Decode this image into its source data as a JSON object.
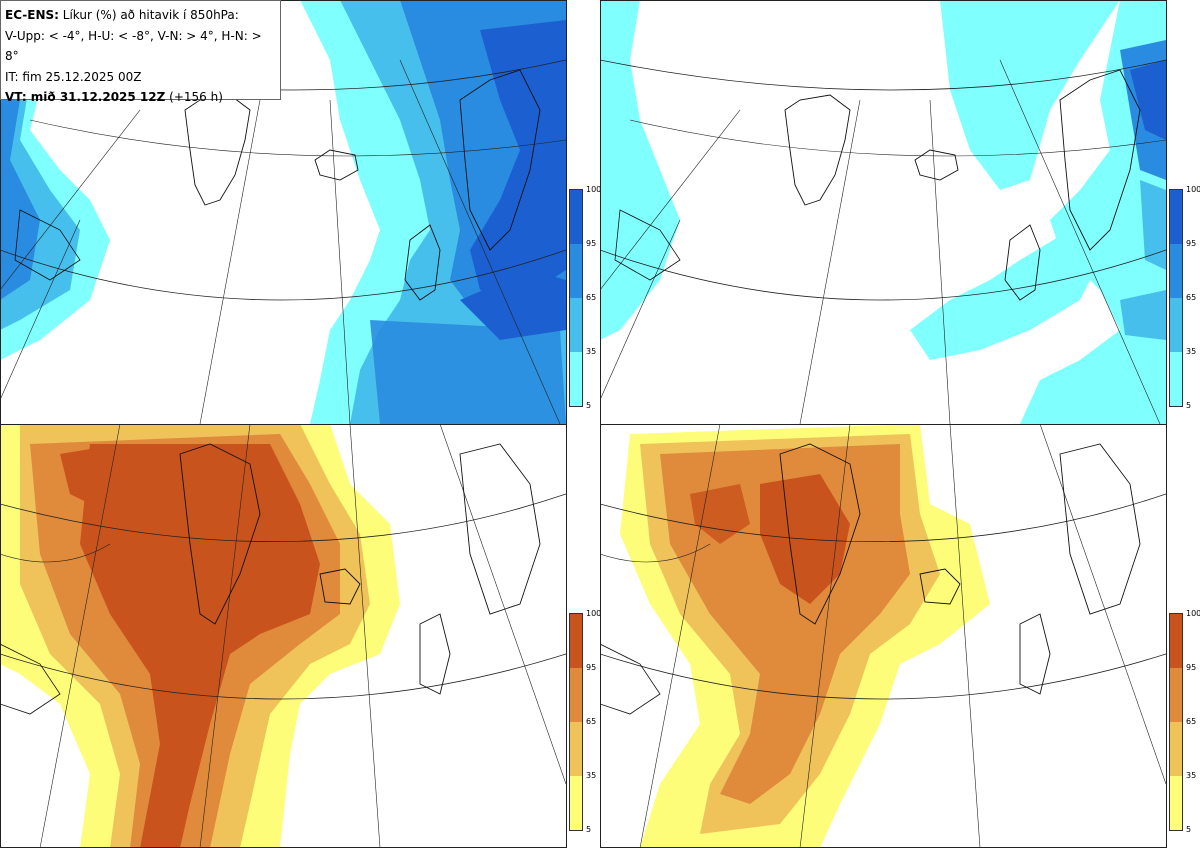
{
  "info": {
    "model": "EC-ENS:",
    "title_rest": "Líkur (%) að hitavik í 850hPa:",
    "legend_line": "V-Upp: < -4°, H-U: < -8°, V-N: > 4°, H-N: > 8°",
    "init_time": "IT: fim 25.12.2025 00Z",
    "valid_label": "VT: mið 31.12.2025 12Z",
    "valid_offset": "(+156 h)"
  },
  "colorbar": {
    "ticks": [
      "100",
      "95",
      "65",
      "35",
      "5"
    ],
    "cold_colors": [
      "#80ffff",
      "#47bfec",
      "#2a8ce0",
      "#1c5fd0"
    ],
    "warm_colors": [
      "#fdfd7a",
      "#efc25a",
      "#e08a3c",
      "#c9531c"
    ]
  },
  "panels": [
    {
      "id": "cold-weak",
      "scheme": "cold"
    },
    {
      "id": "cold-strong",
      "scheme": "cold"
    },
    {
      "id": "warm-weak",
      "scheme": "warm"
    },
    {
      "id": "warm-strong",
      "scheme": "warm"
    }
  ]
}
